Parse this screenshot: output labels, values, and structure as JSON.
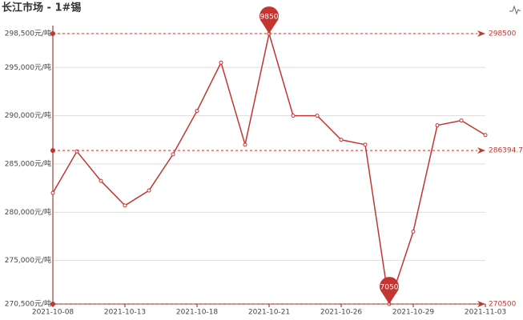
{
  "chart_data": {
    "type": "line",
    "title": "长江市场 - 1#锡",
    "categories": [
      "2021-10-08",
      null,
      null,
      "2021-10-13",
      null,
      null,
      "2021-10-18",
      null,
      null,
      "2021-10-21",
      null,
      null,
      "2021-10-26",
      null,
      null,
      "2021-10-29",
      null,
      null,
      "2021-11-03"
    ],
    "series": [
      {
        "name": "1#锡",
        "color": "#c23531",
        "values": [
          282000,
          286300,
          283250,
          280700,
          282250,
          286000,
          290500,
          295500,
          287000,
          298500,
          290000,
          290000,
          287500,
          287000,
          270500,
          278000,
          289000,
          289500,
          288000
        ]
      }
    ],
    "average": 286394.74,
    "ylim": [
      270500,
      298500
    ],
    "yticks": [
      {
        "value": 270500,
        "label": "270,500元/吨"
      },
      {
        "value": 275000,
        "label": "275,000元/吨"
      },
      {
        "value": 280000,
        "label": "280,000元/吨"
      },
      {
        "value": 285000,
        "label": "285,000元/吨"
      },
      {
        "value": 290000,
        "label": "290,000元/吨"
      },
      {
        "value": 295000,
        "label": "295,000元/吨"
      },
      {
        "value": 298500,
        "label": "298,500元/吨"
      }
    ],
    "grid": true
  }
}
